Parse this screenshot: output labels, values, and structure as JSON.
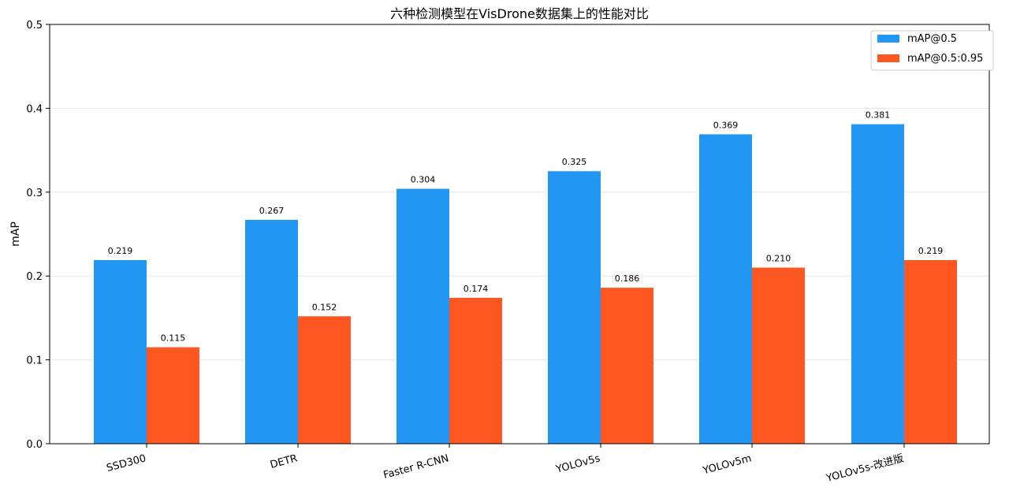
{
  "chart_data": {
    "type": "bar",
    "title": "六种检测模型在VisDrone数据集上的性能对比",
    "xlabel": "",
    "ylabel": "mAP",
    "ylim": [
      0,
      0.5
    ],
    "yticks": [
      "0.0",
      "0.1",
      "0.2",
      "0.3",
      "0.4",
      "0.5"
    ],
    "categories": [
      "SSD300",
      "DETR",
      "Faster R-CNN",
      "YOLOv5s",
      "YOLOv5m",
      "YOLOv5s-改进版"
    ],
    "series": [
      {
        "name": "mAP@0.5",
        "color": "#2196F3",
        "values": [
          0.219,
          0.267,
          0.304,
          0.325,
          0.369,
          0.381
        ],
        "labels": [
          "0.219",
          "0.267",
          "0.304",
          "0.325",
          "0.369",
          "0.381"
        ]
      },
      {
        "name": "mAP@0.5:0.95",
        "color": "#FF5722",
        "values": [
          0.115,
          0.152,
          0.174,
          0.186,
          0.21,
          0.219
        ],
        "labels": [
          "0.115",
          "0.152",
          "0.174",
          "0.186",
          "0.210",
          "0.219"
        ]
      }
    ],
    "grid": "horizontal",
    "legend_position": "top-right"
  }
}
